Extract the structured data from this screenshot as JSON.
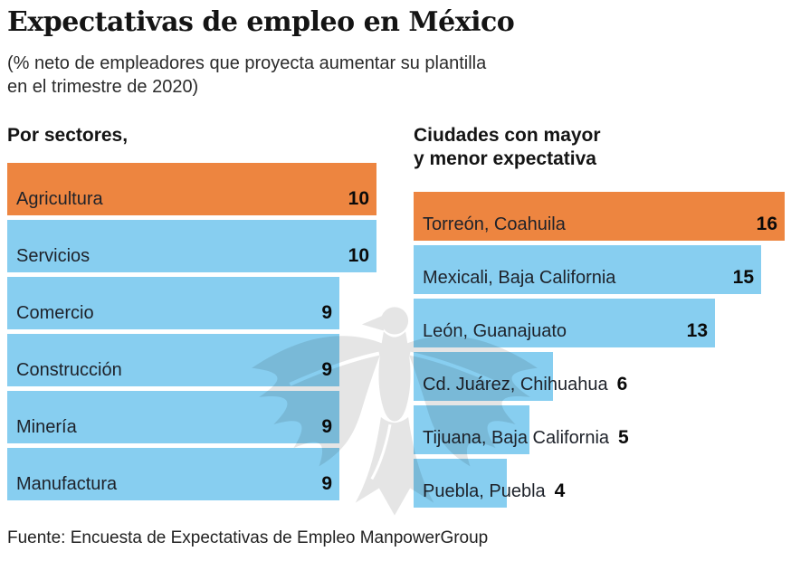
{
  "title": "Expectativas de empleo en México",
  "subtitle": "(% neto de empleadores que proyecta aumentar su plantilla\nen el trimestre de 2020)",
  "source": "Fuente: Encuesta de Expectativas de Empleo ManpowerGroup",
  "colors": {
    "highlight": "#ED8540",
    "bar": "#87CEF0",
    "watermark": "#E5E5E5"
  },
  "watermark_icon": "eagle-emblem",
  "chart_data": [
    {
      "type": "bar",
      "orientation": "horizontal",
      "title": "Por sectores,",
      "categories": [
        "Agricultura",
        "Servicios",
        "Comercio",
        "Construcción",
        "Minería",
        "Manufactura"
      ],
      "values": [
        10,
        10,
        9,
        9,
        9,
        9
      ],
      "highlight_index": 0,
      "xlim": [
        0,
        10
      ],
      "value_labels": true,
      "grid": false,
      "legend": false
    },
    {
      "type": "bar",
      "orientation": "horizontal",
      "title": "Ciudades con mayor\ny menor expectativa",
      "categories": [
        "Torreón, Coahuila",
        "Mexicali, Baja California",
        "León, Guanajuato",
        "Cd. Juárez, Chihuahua",
        "Tijuana, Baja California",
        "Puebla, Puebla"
      ],
      "values": [
        16,
        15,
        13,
        6,
        5,
        4
      ],
      "highlight_index": 0,
      "xlim": [
        0,
        16
      ],
      "value_labels": true,
      "grid": false,
      "legend": false
    }
  ]
}
